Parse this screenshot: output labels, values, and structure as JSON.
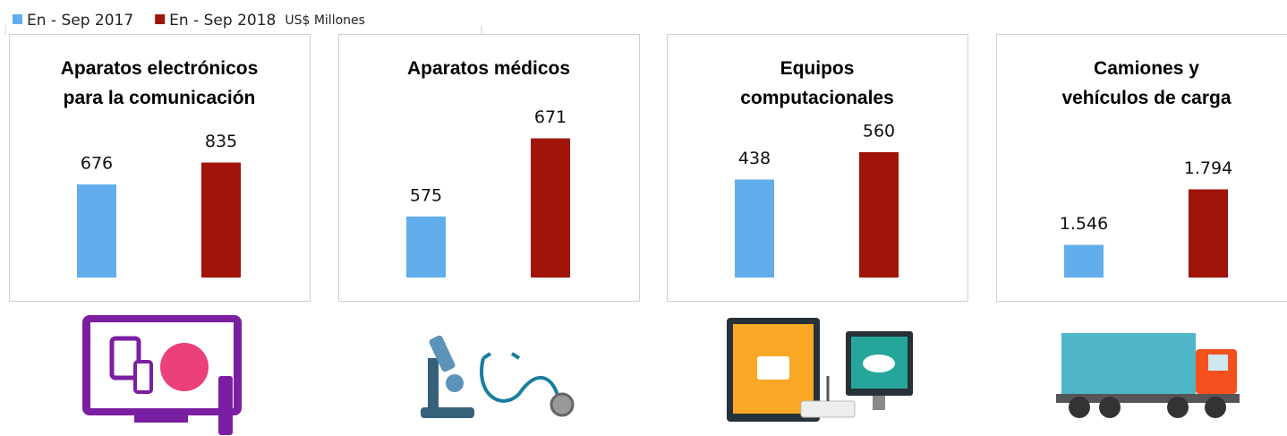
{
  "legend": [
    {
      "name": "En - Sep 2017",
      "color": "#62aeec"
    },
    {
      "name": "En - Sep 2018",
      "color": "#a01409"
    }
  ],
  "unit": "US$ Millones",
  "chart_data": [
    {
      "type": "bar",
      "title": "Aparatos electrónicos\npara la comunicación",
      "values": [
        676,
        835
      ],
      "ylim": [
        0,
        1300
      ]
    },
    {
      "type": "bar",
      "title": "Aparatos médicos",
      "values": [
        575,
        671
      ],
      "ylim": [
        500,
        720
      ]
    },
    {
      "type": "bar",
      "title": "Equipos\ncomputacionales",
      "values": [
        438,
        560
      ],
      "ylim": [
        0,
        800
      ]
    },
    {
      "type": "bar",
      "title": "Camiones y\nvehículos de carga",
      "values": [
        1546,
        1794
      ],
      "value_labels": [
        "1.546",
        "1.794"
      ],
      "ylim": [
        1400,
        2200
      ]
    }
  ]
}
